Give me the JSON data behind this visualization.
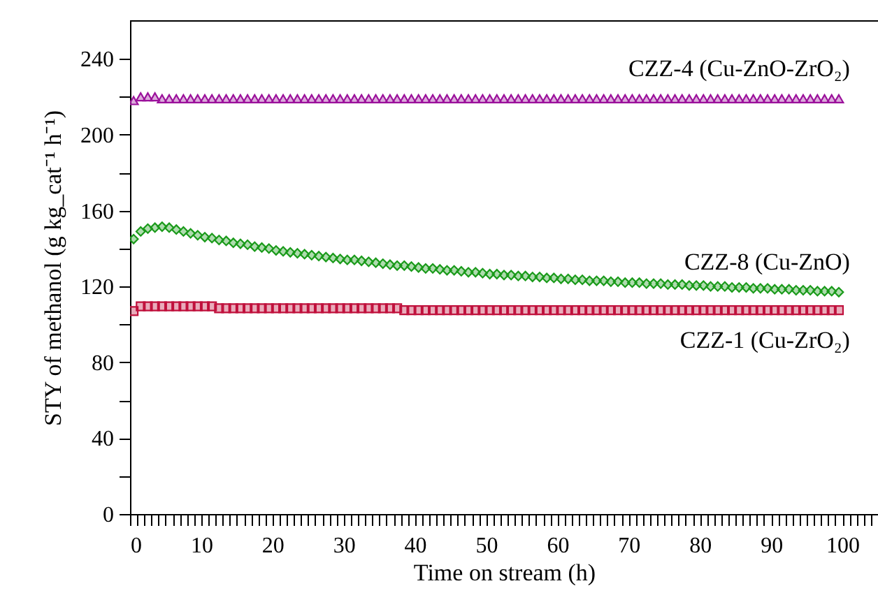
{
  "chart_data": {
    "type": "scatter",
    "xlabel": "Time on stream (h)",
    "ylabel": "STY of methanol (g kg_cat⁻¹ h⁻¹)",
    "x": [
      0.5,
      1.5,
      2.5,
      3.5,
      4.5,
      5.5,
      6.5,
      7.5,
      8.5,
      9.5,
      10.5,
      11.5,
      12.5,
      13.5,
      14.5,
      15.5,
      16.5,
      17.5,
      18.5,
      19.5,
      20.5,
      21.5,
      22.5,
      23.5,
      24.5,
      25.5,
      26.5,
      27.5,
      28.5,
      29.5,
      30.5,
      31.5,
      32.5,
      33.5,
      34.5,
      35.5,
      36.5,
      37.5,
      38.5,
      39.5,
      40.5,
      41.5,
      42.5,
      43.5,
      44.5,
      45.5,
      46.5,
      47.5,
      48.5,
      49.5,
      50.5,
      51.5,
      52.5,
      53.5,
      54.5,
      55.5,
      56.5,
      57.5,
      58.5,
      59.5,
      60.5,
      61.5,
      62.5,
      63.5,
      64.5,
      65.5,
      66.5,
      67.5,
      68.5,
      69.5,
      70.5,
      71.5,
      72.5,
      73.5,
      74.5,
      75.5,
      76.5,
      77.5,
      78.5,
      79.5,
      80.5,
      81.5,
      82.5,
      83.5,
      84.5,
      85.5,
      86.5,
      87.5,
      88.5,
      89.5,
      90.5,
      91.5,
      92.5,
      93.5,
      94.5,
      95.5,
      96.5,
      97.5,
      98.5,
      99.5
    ],
    "series": [
      {
        "name": "CZZ-4 (Cu-ZnO-ZrO₂)",
        "color": "#9b119b",
        "marker": "triangle",
        "values": [
          218,
          220,
          220,
          220,
          219,
          219,
          219,
          219,
          219,
          219,
          219,
          219,
          219,
          219,
          219,
          219,
          219,
          219,
          219,
          219,
          219,
          219,
          219,
          219,
          219,
          219,
          219,
          219,
          219,
          219,
          219,
          219,
          219,
          219,
          219,
          219,
          219,
          219,
          219,
          219,
          219,
          219,
          219,
          219,
          219,
          219,
          219,
          219,
          219,
          219,
          219,
          219,
          219,
          219,
          219,
          219,
          219,
          219,
          219,
          219,
          219,
          219,
          219,
          219,
          219,
          219,
          219,
          219,
          219,
          219,
          219,
          219,
          219,
          219,
          219,
          219,
          219,
          219,
          219,
          219,
          219,
          219,
          219,
          219,
          219,
          219,
          219,
          219,
          219,
          219,
          219,
          219,
          219,
          219,
          219,
          219,
          219,
          219,
          219,
          219
        ]
      },
      {
        "name": "CZZ-8 (Cu-ZnO)",
        "color": "#1a9a1a",
        "marker": "diamond",
        "values": [
          145,
          149,
          150.5,
          151,
          151.5,
          151,
          150,
          149,
          148,
          147,
          146,
          145.5,
          144.5,
          144,
          143,
          142.5,
          142,
          141,
          140.5,
          140,
          139,
          138.5,
          138,
          137.5,
          137,
          136.5,
          136,
          135.5,
          135,
          134.5,
          134,
          134,
          133.5,
          133,
          132.5,
          132,
          131.5,
          131,
          131,
          130.5,
          130,
          129.5,
          129.5,
          129,
          128.5,
          128.5,
          128,
          127.5,
          127.5,
          127,
          126.5,
          126.5,
          126,
          126,
          125.5,
          125.5,
          125,
          125,
          124.5,
          124.5,
          124,
          124,
          123.5,
          123.5,
          123,
          123,
          123,
          122.5,
          122.5,
          122,
          122,
          122,
          121.5,
          121.5,
          121.5,
          121,
          121,
          121,
          120.5,
          120.5,
          120.5,
          120,
          120,
          120,
          119.5,
          119.5,
          119.5,
          119,
          119,
          119,
          118.5,
          118.5,
          118.5,
          118,
          118,
          118,
          117.5,
          117.5,
          117.5,
          117
        ]
      },
      {
        "name": "CZZ-1 (Cu-ZrO₂)",
        "color": "#c0103c",
        "marker": "square",
        "values": [
          107,
          109.5,
          109.5,
          109.5,
          109.5,
          109.5,
          109.5,
          109.5,
          109.5,
          109.5,
          109.5,
          109.5,
          108.5,
          108.5,
          108.5,
          108.5,
          108.5,
          108.5,
          108.5,
          108.5,
          108.5,
          108.5,
          108.5,
          108.5,
          108.5,
          108.5,
          108.5,
          108.5,
          108.5,
          108.5,
          108.5,
          108.5,
          108.5,
          108.5,
          108.5,
          108.5,
          108.5,
          108.5,
          107.5,
          107.5,
          107.5,
          107.5,
          107.5,
          107.5,
          107.5,
          107.5,
          107.5,
          107.5,
          107.5,
          107.5,
          107.5,
          107.5,
          107.5,
          107.5,
          107.5,
          107.5,
          107.5,
          107.5,
          107.5,
          107.5,
          107.5,
          107.5,
          107.5,
          107.5,
          107.5,
          107.5,
          107.5,
          107.5,
          107.5,
          107.5,
          107.5,
          107.5,
          107.5,
          107.5,
          107.5,
          107.5,
          107.5,
          107.5,
          107.5,
          107.5,
          107.5,
          107.5,
          107.5,
          107.5,
          107.5,
          107.5,
          107.5,
          107.5,
          107.5,
          107.5,
          107.5,
          107.5,
          107.5,
          107.5,
          107.5,
          107.5,
          107.5,
          107.5,
          107.5,
          107.5
        ]
      }
    ],
    "xlim": [
      0,
      105
    ],
    "xticks": [
      0,
      {
        "value": 1,
        "label": null
      },
      {
        "value": 2,
        "label": null
      },
      {
        "value": 3,
        "label": null
      },
      {
        "value": 4,
        "label": null
      },
      {
        "value": 5,
        "label": null
      },
      {
        "value": 6,
        "label": null
      },
      {
        "value": 7,
        "label": null
      },
      {
        "value": 8,
        "label": null
      },
      {
        "value": 9,
        "label": null
      },
      10,
      {
        "value": 11,
        "label": null
      },
      {
        "value": 12,
        "label": null
      },
      {
        "value": 13,
        "label": null
      },
      {
        "value": 14,
        "label": null
      },
      {
        "value": 15,
        "label": null
      },
      {
        "value": 16,
        "label": null
      },
      {
        "value": 17,
        "label": null
      },
      {
        "value": 18,
        "label": null
      },
      {
        "value": 19,
        "label": null
      },
      20,
      {
        "value": 21,
        "label": null
      },
      {
        "value": 22,
        "label": null
      },
      {
        "value": 23,
        "label": null
      },
      {
        "value": 24,
        "label": null
      },
      {
        "value": 25,
        "label": null
      },
      {
        "value": 26,
        "label": null
      },
      {
        "value": 27,
        "label": null
      },
      {
        "value": 28,
        "label": null
      },
      {
        "value": 29,
        "label": null
      },
      30,
      {
        "value": 31,
        "label": null
      },
      {
        "value": 32,
        "label": null
      },
      {
        "value": 33,
        "label": null
      },
      {
        "value": 34,
        "label": null
      },
      {
        "value": 35,
        "label": null
      },
      {
        "value": 36,
        "label": null
      },
      {
        "value": 37,
        "label": null
      },
      {
        "value": 38,
        "label": null
      },
      {
        "value": 39,
        "label": null
      },
      40,
      {
        "value": 41,
        "label": null
      },
      {
        "value": 42,
        "label": null
      },
      {
        "value": 43,
        "label": null
      },
      {
        "value": 44,
        "label": null
      },
      {
        "value": 45,
        "label": null
      },
      {
        "value": 46,
        "label": null
      },
      {
        "value": 47,
        "label": null
      },
      {
        "value": 48,
        "label": null
      },
      {
        "value": 49,
        "label": null
      },
      50,
      {
        "value": 51,
        "label": null
      },
      {
        "value": 52,
        "label": null
      },
      {
        "value": 53,
        "label": null
      },
      {
        "value": 54,
        "label": null
      },
      {
        "value": 55,
        "label": null
      },
      {
        "value": 56,
        "label": null
      },
      {
        "value": 57,
        "label": null
      },
      {
        "value": 58,
        "label": null
      },
      {
        "value": 59,
        "label": null
      },
      60,
      {
        "value": 61,
        "label": null
      },
      {
        "value": 62,
        "label": null
      },
      {
        "value": 63,
        "label": null
      },
      {
        "value": 64,
        "label": null
      },
      {
        "value": 65,
        "label": null
      },
      {
        "value": 66,
        "label": null
      },
      {
        "value": 67,
        "label": null
      },
      {
        "value": 68,
        "label": null
      },
      {
        "value": 69,
        "label": null
      },
      70,
      {
        "value": 71,
        "label": null
      },
      {
        "value": 72,
        "label": null
      },
      {
        "value": 73,
        "label": null
      },
      {
        "value": 74,
        "label": null
      },
      {
        "value": 75,
        "label": null
      },
      {
        "value": 76,
        "label": null
      },
      {
        "value": 77,
        "label": null
      },
      {
        "value": 78,
        "label": null
      },
      {
        "value": 79,
        "label": null
      },
      80,
      {
        "value": 81,
        "label": null
      },
      {
        "value": 82,
        "label": null
      },
      {
        "value": 83,
        "label": null
      },
      {
        "value": 84,
        "label": null
      },
      {
        "value": 85,
        "label": null
      },
      {
        "value": 86,
        "label": null
      },
      {
        "value": 87,
        "label": null
      },
      {
        "value": 88,
        "label": null
      },
      {
        "value": 89,
        "label": null
      },
      90,
      {
        "value": 91,
        "label": null
      },
      {
        "value": 92,
        "label": null
      },
      {
        "value": 93,
        "label": null
      },
      {
        "value": 94,
        "label": null
      },
      {
        "value": 95,
        "label": null
      },
      {
        "value": 96,
        "label": null
      },
      {
        "value": 97,
        "label": null
      },
      {
        "value": 98,
        "label": null
      },
      {
        "value": 99,
        "label": null
      },
      100,
      {
        "value": 101,
        "label": null
      },
      {
        "value": 102,
        "label": null
      },
      {
        "value": 103,
        "label": null
      },
      {
        "value": 104,
        "label": null
      },
      {
        "value": 105,
        "label": null
      }
    ],
    "ylim": [
      0,
      260
    ],
    "yticks": [
      0,
      {
        "value": 20,
        "label": null
      },
      40,
      {
        "value": 60,
        "label": null
      },
      80,
      {
        "value": 100,
        "label": null
      },
      120,
      {
        "value": 140,
        "label": null
      },
      160,
      {
        "value": 180,
        "label": null
      },
      200,
      {
        "value": 220,
        "label": null
      },
      240
    ],
    "grid": false
  }
}
